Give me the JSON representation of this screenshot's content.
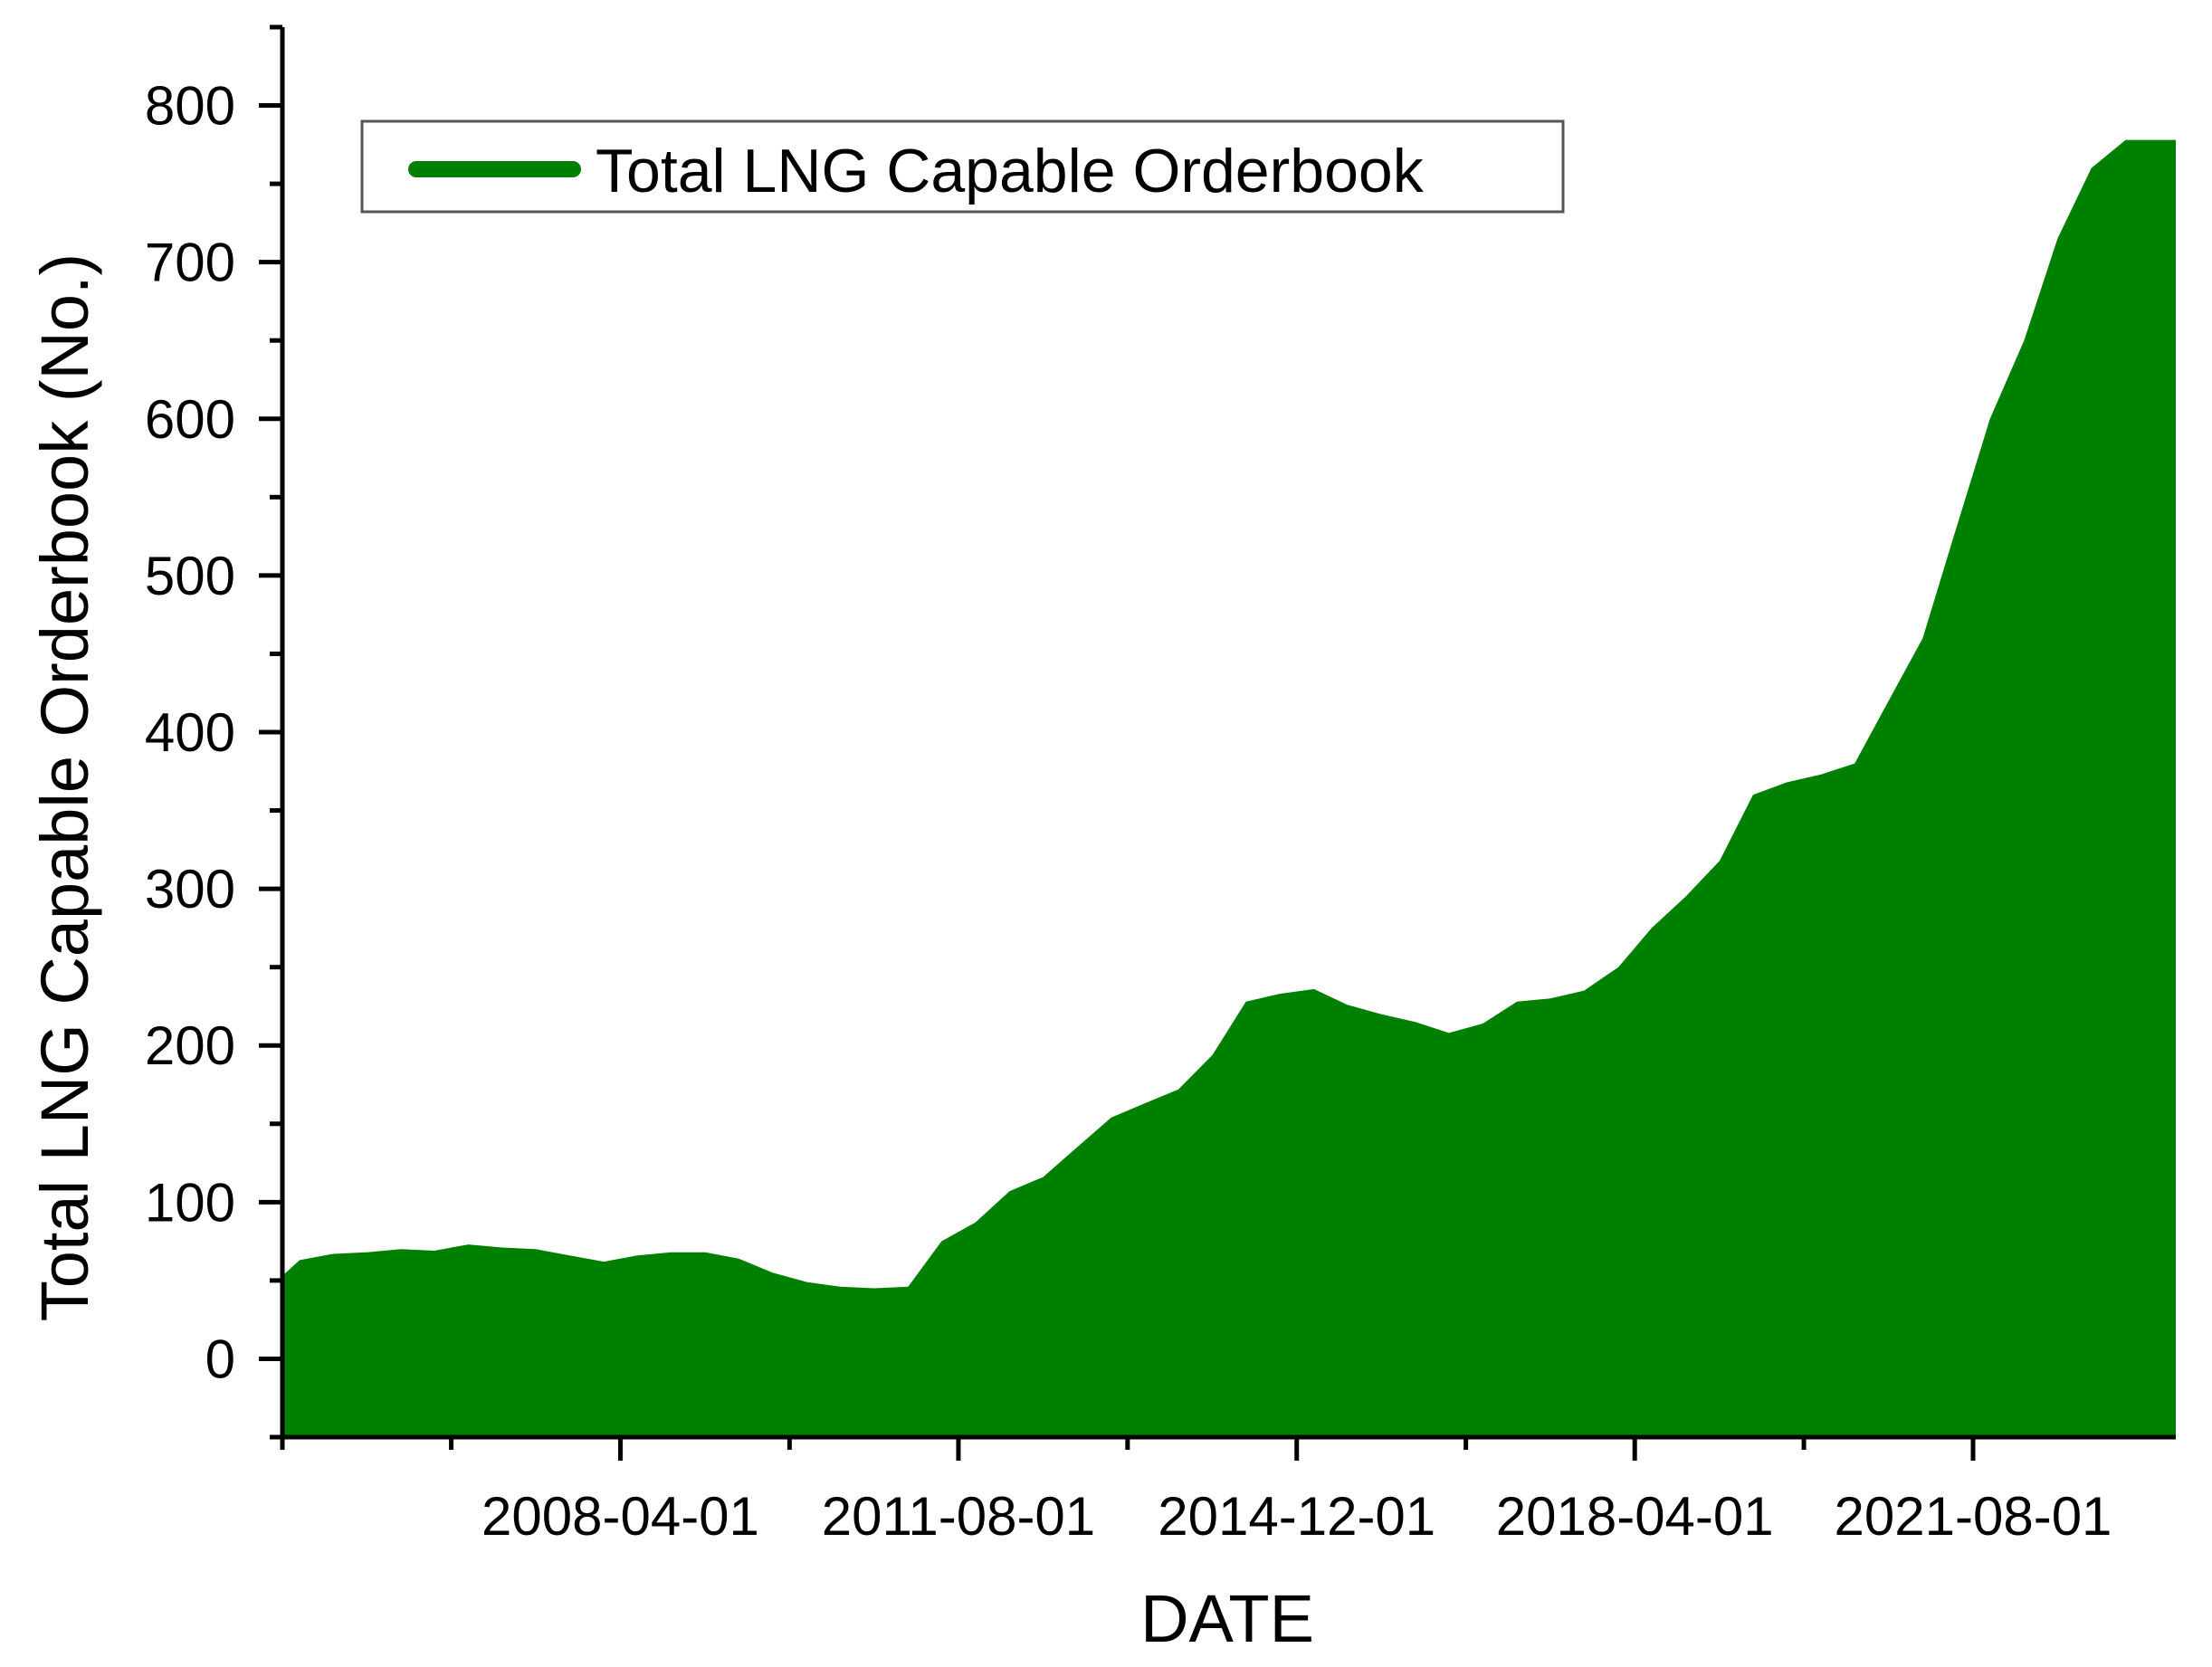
{
  "chart_data": {
    "type": "area",
    "xlabel": "DATE",
    "ylabel": "Total LNG Capable Orderbook (No.)",
    "x_axis": {
      "kind": "date",
      "range": [
        "2004-12-01",
        "2023-08-01"
      ],
      "tick_labels": [
        "2008-04-01",
        "2011-08-01",
        "2014-12-01",
        "2018-04-01",
        "2021-08-01"
      ],
      "ticks": [
        "2008-04-01",
        "2011-08-01",
        "2014-12-01",
        "2018-04-01",
        "2021-08-01"
      ],
      "minor_ticks": [
        "2004-12-01",
        "2006-08-01",
        "2009-12-01",
        "2013-04-01",
        "2016-08-01",
        "2019-12-01"
      ]
    },
    "y_axis": {
      "range": [
        -50,
        850
      ],
      "ticks": [
        0,
        100,
        200,
        300,
        400,
        500,
        600,
        700,
        800
      ],
      "tick_labels": [
        "0",
        "100",
        "200",
        "300",
        "400",
        "500",
        "600",
        "700",
        "800"
      ],
      "minor_ticks": [
        -50,
        50,
        150,
        250,
        350,
        450,
        550,
        650,
        750,
        850
      ]
    },
    "legend": {
      "position": "top-left",
      "entries": [
        "Total LNG Capable Orderbook"
      ]
    },
    "grid": false,
    "colors": {
      "fill": "#008000",
      "axis": "#000000"
    },
    "series": [
      {
        "name": "Total LNG Capable Orderbook",
        "x": [
          "2004-12-01",
          "2005-02-01",
          "2005-06-01",
          "2005-10-01",
          "2006-02-01",
          "2006-06-01",
          "2006-10-01",
          "2007-02-01",
          "2007-06-01",
          "2007-10-01",
          "2008-02-01",
          "2008-06-01",
          "2008-10-01",
          "2009-02-01",
          "2009-06-01",
          "2009-10-01",
          "2010-02-01",
          "2010-06-01",
          "2010-10-01",
          "2011-02-01",
          "2011-06-01",
          "2011-10-01",
          "2012-02-01",
          "2012-06-01",
          "2012-10-01",
          "2013-02-01",
          "2013-06-01",
          "2013-10-01",
          "2014-02-01",
          "2014-06-01",
          "2014-10-01",
          "2015-02-01",
          "2015-06-01",
          "2015-10-01",
          "2016-02-01",
          "2016-06-01",
          "2016-10-01",
          "2017-02-01",
          "2017-06-01",
          "2017-10-01",
          "2018-02-01",
          "2018-06-01",
          "2018-10-01",
          "2019-02-01",
          "2019-06-01",
          "2019-10-01",
          "2020-02-01",
          "2020-06-01",
          "2020-10-01",
          "2021-02-01",
          "2021-06-01",
          "2021-10-01",
          "2022-02-01",
          "2022-06-01",
          "2022-10-01",
          "2023-02-01",
          "2023-06-01",
          "2023-08-01"
        ],
        "values": [
          53,
          63,
          67,
          68,
          70,
          69,
          73,
          71,
          70,
          66,
          62,
          66,
          68,
          68,
          64,
          55,
          49,
          46,
          45,
          46,
          75,
          87,
          107,
          116,
          135,
          154,
          163,
          172,
          194,
          228,
          233,
          236,
          226,
          220,
          215,
          208,
          214,
          228,
          230,
          235,
          250,
          275,
          295,
          318,
          360,
          368,
          373,
          380,
          420,
          460,
          530,
          600,
          650,
          715,
          760,
          778,
          778,
          778
        ]
      }
    ]
  }
}
